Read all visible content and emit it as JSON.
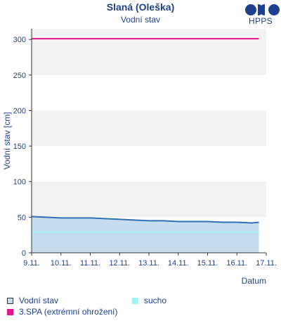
{
  "header": {
    "title": "Slaná (Oleška)",
    "subtitle": "Vodní stav",
    "logo_text": "HPPS",
    "logo_icon": "hpps-logo-icon"
  },
  "chart_data": {
    "type": "area",
    "ylabel": "Vodní stav [cm]",
    "xlabel": "Datum",
    "ylim": [
      0,
      315
    ],
    "yticks": [
      0,
      50,
      100,
      150,
      200,
      250,
      300
    ],
    "xlim": [
      "2024-11-09",
      "2024-11-17"
    ],
    "xtick_labels": [
      "9.11.",
      "10.11.",
      "11.11.",
      "12.11.",
      "13.11.",
      "14.11.",
      "15.11.",
      "16.11.",
      "17.11."
    ],
    "grid": "horizontal bands",
    "series": [
      {
        "name": "Vodní stav",
        "color": "#2f6fb3",
        "fill": "#c6ddf0",
        "x": [
          "9.11.",
          "9.11. 12:00",
          "10.11.",
          "10.11. 12:00",
          "11.11.",
          "11.11. 12:00",
          "12.11.",
          "12.11. 12:00",
          "13.11.",
          "13.11. 12:00",
          "14.11.",
          "14.11. 12:00",
          "15.11.",
          "15.11. 12:00",
          "16.11.",
          "16.11. 12:00",
          "16.11. 18:00"
        ],
        "values": [
          51,
          50,
          49,
          49,
          49,
          48,
          47,
          46,
          45,
          45,
          44,
          44,
          44,
          43,
          43,
          42,
          43
        ]
      },
      {
        "name": "sucho",
        "color": "#a6f3f3",
        "values": [
          29
        ]
      },
      {
        "name": "3.SPA (extrémní ohrožení)",
        "color": "#e0198f",
        "values": [
          301
        ]
      }
    ],
    "legend_position": "bottom"
  },
  "legend": {
    "items": [
      {
        "label": "Vodní stav",
        "color": "#c6ddf0",
        "border": "#333333"
      },
      {
        "label": "sucho",
        "color": "#a6f3f3"
      },
      {
        "label": "3.SPA (extrémní ohrožení)",
        "color": "#e0198f"
      }
    ]
  }
}
